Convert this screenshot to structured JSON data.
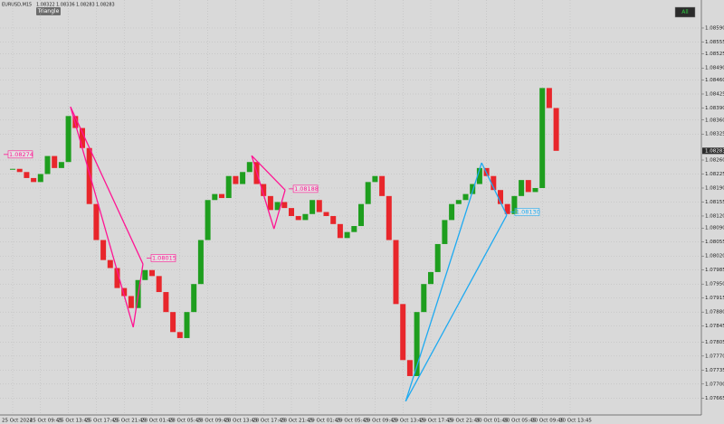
{
  "chart_data": {
    "type": "candlestick",
    "title": "EURUSD,M15",
    "ohlc_header": [
      1.08322,
      1.08336,
      1.08283,
      1.08283
    ],
    "button": "Triangle",
    "toggle": "All",
    "up_color": "#1e9e1e",
    "down_color": "#e8262b",
    "last_price": 1.08283,
    "grid": true,
    "categories": [
      "25 Oct 2024",
      null,
      null,
      null,
      "25 Oct 09:45",
      null,
      null,
      null,
      "25 Oct 13:45",
      null,
      null,
      null,
      "25 Oct 17:45",
      null,
      null,
      null,
      "25 Oct 21:45",
      null,
      null,
      null,
      "28 Oct 01:45",
      null,
      null,
      null,
      "28 Oct 05:45",
      null,
      null,
      null,
      "28 Oct 09:45",
      null,
      null,
      null,
      "28 Oct 13:45",
      null,
      null,
      null,
      "28 Oct 17:45",
      null,
      null,
      null,
      "28 Oct 21:45",
      null,
      null,
      null,
      "29 Oct 01:45",
      null,
      null,
      null,
      "29 Oct 05:45",
      null,
      null,
      null,
      "29 Oct 09:45",
      null,
      null,
      null,
      "29 Oct 13:45",
      null,
      null,
      null,
      "29 Oct 17:45",
      null,
      null,
      null,
      "29 Oct 21:45",
      null,
      null,
      null,
      "30 Oct 01:45",
      null,
      null,
      null,
      "30 Oct 05:45",
      null,
      null,
      null,
      "30 Oct 09:45",
      null,
      null,
      null,
      "30 Oct 13:45"
    ],
    "closes": [
      1.08238,
      1.0823,
      1.08215,
      1.08205,
      1.08225,
      1.0827,
      1.0824,
      1.08255,
      1.0837,
      1.0834,
      1.0829,
      1.0815,
      1.0806,
      1.0801,
      1.0799,
      1.0794,
      1.0792,
      1.0789,
      1.0796,
      1.07985,
      1.0797,
      1.0793,
      1.0788,
      1.0783,
      1.07815,
      1.0788,
      1.0795,
      1.0806,
      1.0816,
      1.08175,
      1.08165,
      1.0822,
      1.082,
      1.0823,
      1.08255,
      1.082,
      1.0817,
      1.08135,
      1.08155,
      1.0814,
      1.0812,
      1.0811,
      1.08125,
      1.0816,
      1.0813,
      1.0812,
      1.081,
      1.08065,
      1.0808,
      1.08095,
      1.0815,
      1.08205,
      1.0822,
      1.0817,
      1.0806,
      1.079,
      1.0776,
      1.0772,
      1.0788,
      1.0795,
      1.0798,
      1.0805,
      1.0811,
      1.0815,
      1.0816,
      1.08175,
      1.082,
      1.0824,
      1.0822,
      1.08185,
      1.0815,
      1.08125,
      1.0817,
      1.0821,
      1.0818,
      1.0819,
      1.0844,
      1.0839,
      1.08283,
      null,
      null
    ],
    "ylim": [
      1.07616,
      1.0866
    ],
    "yticks": [
      {
        "value": 1.0859,
        "label": "1.08590"
      },
      {
        "value": 1.08555,
        "label": "1.08555"
      },
      {
        "value": 1.08525,
        "label": "1.08525"
      },
      {
        "value": 1.0849,
        "label": "1.08490"
      },
      {
        "value": 1.0846,
        "label": "1.08460"
      },
      {
        "value": 1.08425,
        "label": "1.08425"
      },
      {
        "value": 1.0839,
        "label": "1.08390"
      },
      {
        "value": 1.0836,
        "label": "1.08360"
      },
      {
        "value": 1.08325,
        "label": "1.08325"
      },
      {
        "value": 1.0826,
        "label": "1.08260"
      },
      {
        "value": 1.08225,
        "label": "1.08225"
      },
      {
        "value": 1.0819,
        "label": "1.08190"
      },
      {
        "value": 1.08155,
        "label": "1.08155"
      },
      {
        "value": 1.0812,
        "label": "1.08120"
      },
      {
        "value": 1.0809,
        "label": "1.08090"
      },
      {
        "value": 1.08055,
        "label": "1.08055"
      },
      {
        "value": 1.0802,
        "label": "1.08020"
      },
      {
        "value": 1.07985,
        "label": "1.07985"
      },
      {
        "value": 1.0795,
        "label": "1.07950"
      },
      {
        "value": 1.07915,
        "label": "1.07915"
      },
      {
        "value": 1.0788,
        "label": "1.07880"
      },
      {
        "value": 1.07845,
        "label": "1.07845"
      },
      {
        "value": 1.07805,
        "label": "1.07805"
      },
      {
        "value": 1.0777,
        "label": "1.07770"
      },
      {
        "value": 1.07735,
        "label": "1.07735"
      },
      {
        "value": 1.077,
        "label": "1.07700"
      },
      {
        "value": 1.07665,
        "label": "1.07665"
      }
    ],
    "patterns": [
      {
        "color": "#ff1493",
        "x": [
          8.3,
          17.3,
          18.7
        ],
        "y": [
          1.08393,
          1.07842,
          1.08
        ],
        "levels": [
          1.08274,
          1.08015
        ]
      },
      {
        "color": "#ff1493",
        "x": [
          34.3,
          37.5,
          39.1
        ],
        "y": [
          1.08271,
          1.08088,
          1.08185
        ],
        "levels": [
          1.08188
        ]
      },
      {
        "color": "#1eaaf1",
        "x": [
          67.3,
          56.4,
          70.9
        ],
        "y": [
          1.08253,
          1.07657,
          1.08122
        ],
        "levels": [
          {
            "value": 1.0813,
            "label": "1.08130"
          }
        ]
      }
    ]
  }
}
